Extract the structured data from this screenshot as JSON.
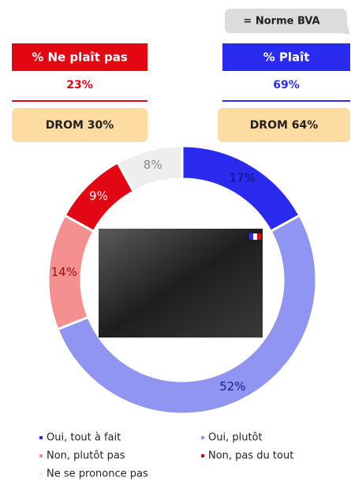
{
  "summary": {
    "norm": "= Norme BVA",
    "left": {
      "title": "% Ne plaît pas",
      "value": "23%",
      "drom": "DROM 30%"
    },
    "right": {
      "title": "% Plaît",
      "value": "69%",
      "drom": "DROM 64%"
    }
  },
  "chart_data": {
    "type": "donut",
    "categories": [
      "Oui, tout à fait",
      "Oui, plutôt",
      "Non, plutôt pas",
      "Non, pas du tout",
      "Ne se prononce pas"
    ],
    "values": [
      17,
      52,
      14,
      9,
      8
    ],
    "value_labels": [
      "17%",
      "52%",
      "14%",
      "9%",
      "8%"
    ],
    "colors": [
      "#2b2bef",
      "#8f95f0",
      "#f4908f",
      "#e30613",
      "#eeeeee"
    ],
    "label_colors": [
      "#10106a",
      "#1a1a8a",
      "#a01010",
      "#ffffff",
      "#888888"
    ]
  }
}
